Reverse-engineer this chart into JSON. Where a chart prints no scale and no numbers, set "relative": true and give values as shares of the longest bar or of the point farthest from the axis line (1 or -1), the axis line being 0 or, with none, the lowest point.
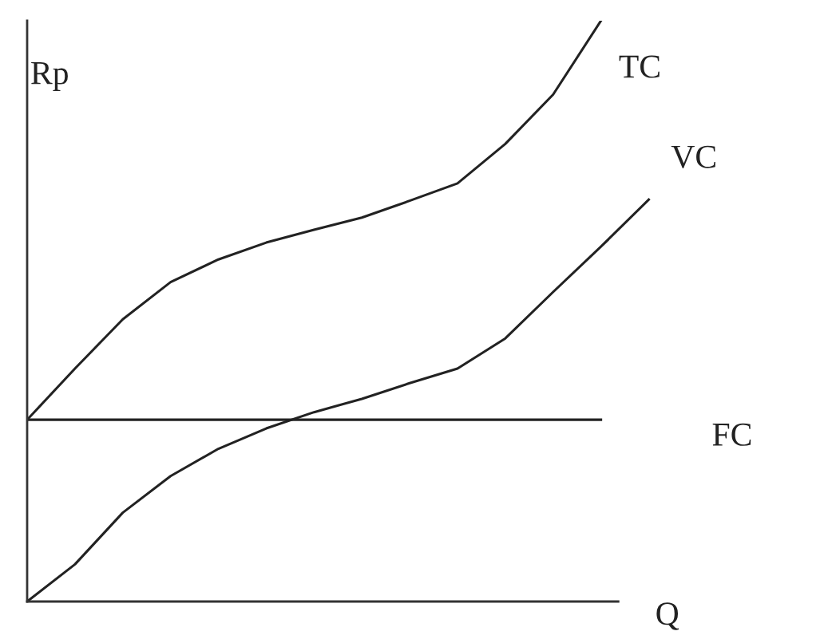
{
  "chart_data": {
    "type": "line",
    "relative": true,
    "ylabel": "Rp",
    "xlabel": "Q",
    "legend": false,
    "marker": "none",
    "line_style": "solid",
    "categories": [
      null,
      null,
      null,
      null,
      null,
      null,
      null,
      null,
      null,
      null,
      null,
      null,
      null,
      null
    ],
    "series": [
      {
        "name": "TC",
        "color": "#222222",
        "values": [
          0.313,
          0.401,
          0.486,
          0.55,
          0.589,
          0.618,
          0.64,
          0.661,
          0.69,
          0.72,
          0.788,
          0.873,
          1.0,
          null
        ]
      },
      {
        "name": "VC",
        "color": "#222222",
        "values": [
          0,
          0.064,
          0.153,
          0.216,
          0.263,
          0.298,
          0.326,
          0.349,
          0.376,
          0.401,
          0.453,
          0.533,
          0.611,
          0.692
        ]
      },
      {
        "name": "FC",
        "color": "#222222",
        "values": [
          0.313,
          0.313,
          0.313,
          0.313,
          0.313,
          0.313,
          0.313,
          0.313,
          0.313,
          0.313,
          0.313,
          0.313,
          0.313,
          null
        ]
      }
    ]
  }
}
